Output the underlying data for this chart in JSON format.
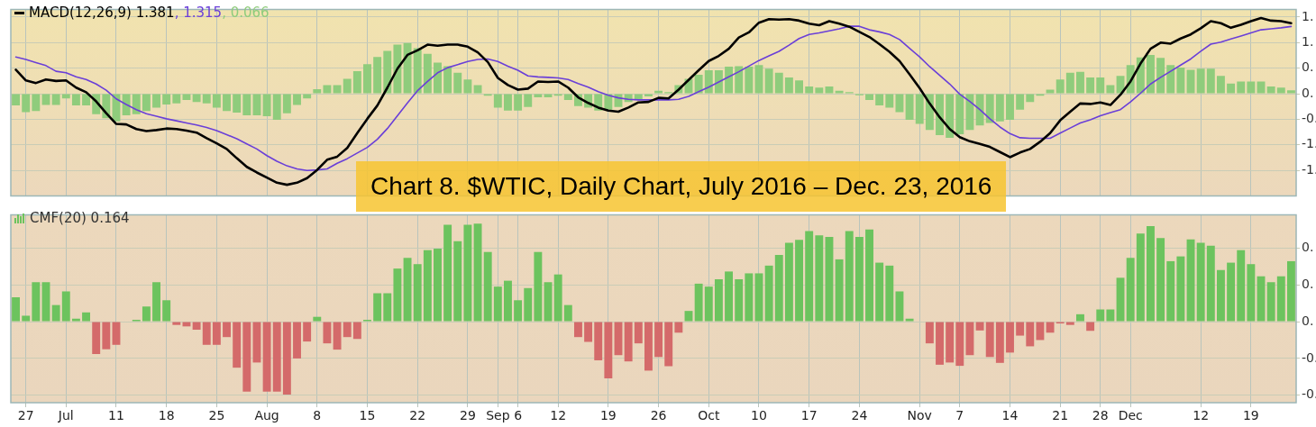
{
  "chart_data": [
    {
      "type": "line",
      "title": "Chart 8. $WTIC, Daily Chart, July 2016 – Dec. 23, 2016",
      "categories": [
        null,
        null,
        null,
        null,
        null,
        null,
        null,
        null,
        null,
        null,
        null,
        null,
        null,
        null,
        null,
        null,
        null,
        null,
        null,
        null,
        null,
        null,
        null,
        null,
        null,
        null,
        null,
        null,
        null,
        null,
        null,
        null,
        null,
        null,
        null,
        null,
        null,
        null,
        null,
        null,
        null,
        null,
        null,
        null,
        null,
        null,
        null,
        null,
        null,
        null,
        null,
        null,
        null,
        null,
        null,
        null,
        null,
        null,
        null,
        null,
        null,
        null,
        null,
        null,
        null,
        null,
        null,
        null,
        null,
        null,
        null,
        null,
        null,
        null,
        null,
        null,
        null,
        null,
        null,
        null,
        null,
        null,
        null,
        null,
        null,
        null,
        null,
        null,
        null,
        null,
        null,
        null,
        null,
        null,
        null,
        null,
        null,
        null,
        null,
        null,
        null,
        null,
        null,
        null,
        null,
        null,
        null,
        null,
        null,
        null,
        null,
        null,
        null,
        null,
        null,
        null,
        null,
        null,
        null,
        null,
        null,
        null,
        null,
        null,
        null,
        null,
        null,
        null
      ],
      "series": [
        {
          "name": "MACD(12,26,9) 1.381",
          "color": "#000000",
          "type": "line",
          "values": [
            0.47,
            0.26,
            0.21,
            0.28,
            0.25,
            0.26,
            0.12,
            0.03,
            -0.15,
            -0.38,
            -0.59,
            -0.6,
            -0.69,
            -0.73,
            -0.71,
            -0.68,
            -0.69,
            -0.72,
            -0.76,
            -0.87,
            -0.97,
            -1.08,
            -1.26,
            -1.43,
            -1.54,
            -1.64,
            -1.74,
            -1.78,
            -1.74,
            -1.65,
            -1.49,
            -1.29,
            -1.23,
            -1.06,
            -0.77,
            -0.49,
            -0.23,
            0.12,
            0.49,
            0.76,
            0.85,
            0.96,
            0.94,
            0.96,
            0.96,
            0.92,
            0.81,
            0.62,
            0.31,
            0.17,
            0.08,
            0.1,
            0.24,
            0.23,
            0.24,
            0.12,
            -0.07,
            -0.18,
            -0.27,
            -0.33,
            -0.35,
            -0.27,
            -0.17,
            -0.16,
            -0.08,
            -0.09,
            0.08,
            0.27,
            0.46,
            0.64,
            0.74,
            0.88,
            1.1,
            1.2,
            1.39,
            1.46,
            1.45,
            1.46,
            1.43,
            1.37,
            1.34,
            1.42,
            1.37,
            1.31,
            1.21,
            1.11,
            0.97,
            0.82,
            0.64,
            0.38,
            0.11,
            -0.19,
            -0.46,
            -0.69,
            -0.85,
            -0.93,
            -0.98,
            -1.04,
            -1.14,
            -1.24,
            -1.15,
            -1.08,
            -0.94,
            -0.77,
            -0.52,
            -0.35,
            -0.19,
            -0.2,
            -0.17,
            -0.22,
            -0.02,
            0.24,
            0.59,
            0.88,
            1.0,
            0.98,
            1.08,
            1.16,
            1.28,
            1.42,
            1.38,
            1.29,
            1.35,
            1.42,
            1.48,
            1.43,
            1.42,
            1.381
          ]
        },
        {
          "name": ", 1.315",
          "color": "#6a3fd8",
          "type": "line",
          "values": [
            0.72,
            0.67,
            0.61,
            0.55,
            0.44,
            0.41,
            0.33,
            0.28,
            0.19,
            0.07,
            -0.1,
            -0.21,
            -0.31,
            -0.39,
            -0.44,
            -0.49,
            -0.53,
            -0.57,
            -0.61,
            -0.66,
            -0.72,
            -0.8,
            -0.88,
            -0.98,
            -1.08,
            -1.21,
            -1.32,
            -1.41,
            -1.47,
            -1.5,
            -1.49,
            -1.47,
            -1.36,
            -1.27,
            -1.16,
            -1.05,
            -0.89,
            -0.68,
            -0.43,
            -0.18,
            0.06,
            0.24,
            0.41,
            0.51,
            0.57,
            0.63,
            0.67,
            0.68,
            0.63,
            0.54,
            0.46,
            0.35,
            0.33,
            0.32,
            0.31,
            0.28,
            0.2,
            0.13,
            0.04,
            -0.03,
            -0.08,
            -0.11,
            -0.12,
            -0.12,
            -0.12,
            -0.12,
            -0.11,
            -0.05,
            0.04,
            0.13,
            0.23,
            0.33,
            0.43,
            0.54,
            0.65,
            0.74,
            0.83,
            0.95,
            1.08,
            1.16,
            1.19,
            1.23,
            1.27,
            1.32,
            1.32,
            1.25,
            1.21,
            1.16,
            1.06,
            0.89,
            0.72,
            0.53,
            0.36,
            0.19,
            -0.01,
            -0.15,
            -0.31,
            -0.49,
            -0.65,
            -0.78,
            -0.86,
            -0.87,
            -0.87,
            -0.87,
            -0.77,
            -0.67,
            -0.57,
            -0.51,
            -0.43,
            -0.37,
            -0.31,
            -0.16,
            0.01,
            0.19,
            0.32,
            0.44,
            0.56,
            0.68,
            0.83,
            0.97,
            1.01,
            1.07,
            1.13,
            1.19,
            1.25,
            1.27,
            1.29,
            1.315
          ]
        },
        {
          "name": ", 0.066",
          "color": "#8fcc7c",
          "type": "bar",
          "values": [
            -0.23,
            -0.36,
            -0.34,
            -0.22,
            -0.22,
            -0.09,
            -0.23,
            -0.23,
            -0.4,
            -0.48,
            -0.54,
            -0.42,
            -0.4,
            -0.34,
            -0.27,
            -0.21,
            -0.19,
            -0.12,
            -0.16,
            -0.19,
            -0.27,
            -0.34,
            -0.37,
            -0.42,
            -0.42,
            -0.44,
            -0.51,
            -0.38,
            -0.22,
            -0.09,
            0.09,
            0.17,
            0.17,
            0.29,
            0.44,
            0.58,
            0.72,
            0.84,
            0.96,
            0.99,
            0.89,
            0.78,
            0.61,
            0.54,
            0.41,
            0.28,
            0.17,
            -0.04,
            -0.27,
            -0.33,
            -0.33,
            -0.26,
            -0.07,
            -0.07,
            -0.04,
            -0.12,
            -0.24,
            -0.27,
            -0.33,
            -0.31,
            -0.26,
            -0.16,
            -0.12,
            -0.05,
            0.06,
            0.03,
            0.17,
            0.29,
            0.37,
            0.46,
            0.46,
            0.53,
            0.54,
            0.53,
            0.56,
            0.49,
            0.41,
            0.32,
            0.26,
            0.14,
            0.12,
            0.14,
            0.06,
            0.03,
            -0.03,
            -0.12,
            -0.23,
            -0.27,
            -0.36,
            -0.51,
            -0.59,
            -0.71,
            -0.81,
            -0.86,
            -0.79,
            -0.71,
            -0.62,
            -0.57,
            -0.54,
            -0.51,
            -0.31,
            -0.16,
            -0.04,
            0.08,
            0.28,
            0.41,
            0.43,
            0.32,
            0.32,
            0.17,
            0.35,
            0.56,
            0.71,
            0.76,
            0.7,
            0.56,
            0.51,
            0.47,
            0.49,
            0.49,
            0.35,
            0.2,
            0.24,
            0.24,
            0.24,
            0.14,
            0.12,
            0.066
          ]
        }
      ],
      "ylim": [
        -2.0,
        1.65
      ],
      "yticks": [
        {
          "value": -1.5,
          "label": "-1."
        },
        {
          "value": -1,
          "label": "-1."
        },
        {
          "value": -0.5,
          "label": "-0."
        },
        {
          "value": 0,
          "label": "0."
        },
        {
          "value": 0.5,
          "label": "0."
        },
        {
          "value": 1,
          "label": "1."
        },
        {
          "value": 1.5,
          "label": "1."
        }
      ],
      "grid": true,
      "legend": "top left",
      "tick_labels": "y",
      "marker": "none"
    },
    {
      "type": "bar",
      "categories": [
        null,
        "27",
        null,
        null,
        null,
        "Jul",
        null,
        null,
        null,
        null,
        "11",
        null,
        null,
        null,
        null,
        "18",
        null,
        null,
        null,
        null,
        "25",
        null,
        null,
        null,
        null,
        "Aug",
        null,
        null,
        null,
        null,
        "8",
        null,
        null,
        null,
        null,
        "15",
        null,
        null,
        null,
        null,
        "22",
        null,
        null,
        null,
        null,
        "29",
        null,
        null,
        "Sep",
        null,
        "6",
        null,
        null,
        null,
        "12",
        null,
        null,
        null,
        null,
        "19",
        null,
        null,
        null,
        null,
        "26",
        null,
        null,
        null,
        null,
        "Oct",
        null,
        null,
        null,
        null,
        "10",
        null,
        null,
        null,
        null,
        "17",
        null,
        null,
        null,
        null,
        "24",
        null,
        null,
        null,
        null,
        null,
        "Nov",
        null,
        null,
        null,
        "7",
        null,
        null,
        null,
        null,
        "14",
        null,
        null,
        null,
        null,
        "21",
        null,
        null,
        null,
        "28",
        null,
        null,
        "Dec",
        null,
        null,
        null,
        null,
        null,
        null,
        "12",
        null,
        null,
        null,
        null,
        "19",
        null,
        null,
        null,
        null
      ],
      "series": [
        {
          "name": "CMF(20) 0.164",
          "values": [
            0.066,
            0.016,
            0.107,
            0.107,
            0.045,
            0.082,
            0.008,
            0.025,
            -0.088,
            -0.075,
            -0.063,
            0,
            0.005,
            0.041,
            0.107,
            0.058,
            -0.009,
            -0.013,
            -0.022,
            -0.063,
            -0.063,
            -0.042,
            -0.125,
            -0.19,
            -0.111,
            -0.19,
            -0.19,
            -0.198,
            -0.1,
            -0.054,
            0.013,
            -0.059,
            -0.076,
            -0.042,
            -0.047,
            0.005,
            0.077,
            0.077,
            0.144,
            0.173,
            0.156,
            0.194,
            0.198,
            0.263,
            0.218,
            0.263,
            0.266,
            0.189,
            0.095,
            0.111,
            0.058,
            0.091,
            0.189,
            0.107,
            0.128,
            0.045,
            -0.042,
            -0.055,
            -0.105,
            -0.154,
            -0.091,
            -0.108,
            -0.059,
            -0.133,
            -0.096,
            -0.121,
            -0.03,
            0.029,
            0.103,
            0.095,
            0.115,
            0.136,
            0.115,
            0.131,
            0.131,
            0.152,
            0.181,
            0.214,
            0.222,
            0.246,
            0.234,
            0.23,
            0.169,
            0.246,
            0.23,
            0.25,
            0.16,
            0.152,
            0.082,
            0.008,
            0,
            -0.059,
            -0.117,
            -0.111,
            -0.12,
            -0.091,
            -0.024,
            -0.096,
            -0.112,
            -0.084,
            -0.038,
            -0.067,
            -0.05,
            -0.03,
            -0.005,
            -0.009,
            0.02,
            -0.025,
            0.033,
            0.033,
            0.119,
            0.173,
            0.239,
            0.259,
            0.227,
            0.164,
            0.177,
            0.223,
            0.214,
            0.206,
            0.14,
            0.16,
            0.194,
            0.156,
            0.123,
            0.107,
            0.123,
            0.164
          ],
          "colors": [
            "#6cc35e",
            "#6cc35e",
            "#6cc35e",
            "#6cc35e",
            "#6cc35e",
            "#6cc35e",
            "#6cc35e",
            "#6cc35e",
            "#d46a6a",
            "#d46a6a",
            "#d46a6a",
            "#6cc35e",
            "#6cc35e",
            "#6cc35e",
            "#6cc35e",
            "#6cc35e",
            "#d46a6a",
            "#d46a6a",
            "#d46a6a",
            "#d46a6a",
            "#d46a6a",
            "#d46a6a",
            "#d46a6a",
            "#d46a6a",
            "#d46a6a",
            "#d46a6a",
            "#d46a6a",
            "#d46a6a",
            "#d46a6a",
            "#d46a6a",
            "#6cc35e",
            "#d46a6a",
            "#d46a6a",
            "#d46a6a",
            "#d46a6a",
            "#6cc35e",
            "#6cc35e",
            "#6cc35e",
            "#6cc35e",
            "#6cc35e",
            "#6cc35e",
            "#6cc35e",
            "#6cc35e",
            "#6cc35e",
            "#6cc35e",
            "#6cc35e",
            "#6cc35e",
            "#6cc35e",
            "#6cc35e",
            "#6cc35e",
            "#6cc35e",
            "#6cc35e",
            "#6cc35e",
            "#6cc35e",
            "#6cc35e",
            "#6cc35e",
            "#d46a6a",
            "#d46a6a",
            "#d46a6a",
            "#d46a6a",
            "#d46a6a",
            "#d46a6a",
            "#d46a6a",
            "#d46a6a",
            "#d46a6a",
            "#d46a6a",
            "#d46a6a",
            "#6cc35e",
            "#6cc35e",
            "#6cc35e",
            "#6cc35e",
            "#6cc35e",
            "#6cc35e",
            "#6cc35e",
            "#6cc35e",
            "#6cc35e",
            "#6cc35e",
            "#6cc35e",
            "#6cc35e",
            "#6cc35e",
            "#6cc35e",
            "#6cc35e",
            "#6cc35e",
            "#6cc35e",
            "#6cc35e",
            "#6cc35e",
            "#6cc35e",
            "#6cc35e",
            "#6cc35e",
            "#6cc35e",
            "#6cc35e",
            "#d46a6a",
            "#d46a6a",
            "#d46a6a",
            "#d46a6a",
            "#d46a6a",
            "#d46a6a",
            "#d46a6a",
            "#d46a6a",
            "#d46a6a",
            "#d46a6a",
            "#d46a6a",
            "#d46a6a",
            "#d46a6a",
            "#d46a6a",
            "#d46a6a",
            "#6cc35e",
            "#d46a6a",
            "#6cc35e",
            "#6cc35e",
            "#6cc35e",
            "#6cc35e",
            "#6cc35e",
            "#6cc35e",
            "#6cc35e",
            "#6cc35e",
            "#6cc35e",
            "#6cc35e",
            "#6cc35e",
            "#6cc35e",
            "#6cc35e",
            "#6cc35e",
            "#6cc35e",
            "#6cc35e",
            "#6cc35e",
            "#6cc35e",
            "#6cc35e",
            "#6cc35e"
          ]
        }
      ],
      "ylim": [
        -0.22,
        0.29
      ],
      "yticks": [
        {
          "value": -0.2,
          "label": "-0."
        },
        {
          "value": -0.1,
          "label": "-0."
        },
        {
          "value": 0,
          "label": "0."
        },
        {
          "value": 0.1,
          "label": "0."
        },
        {
          "value": 0.2,
          "label": "0."
        }
      ],
      "grid": true,
      "legend": "top left"
    }
  ]
}
